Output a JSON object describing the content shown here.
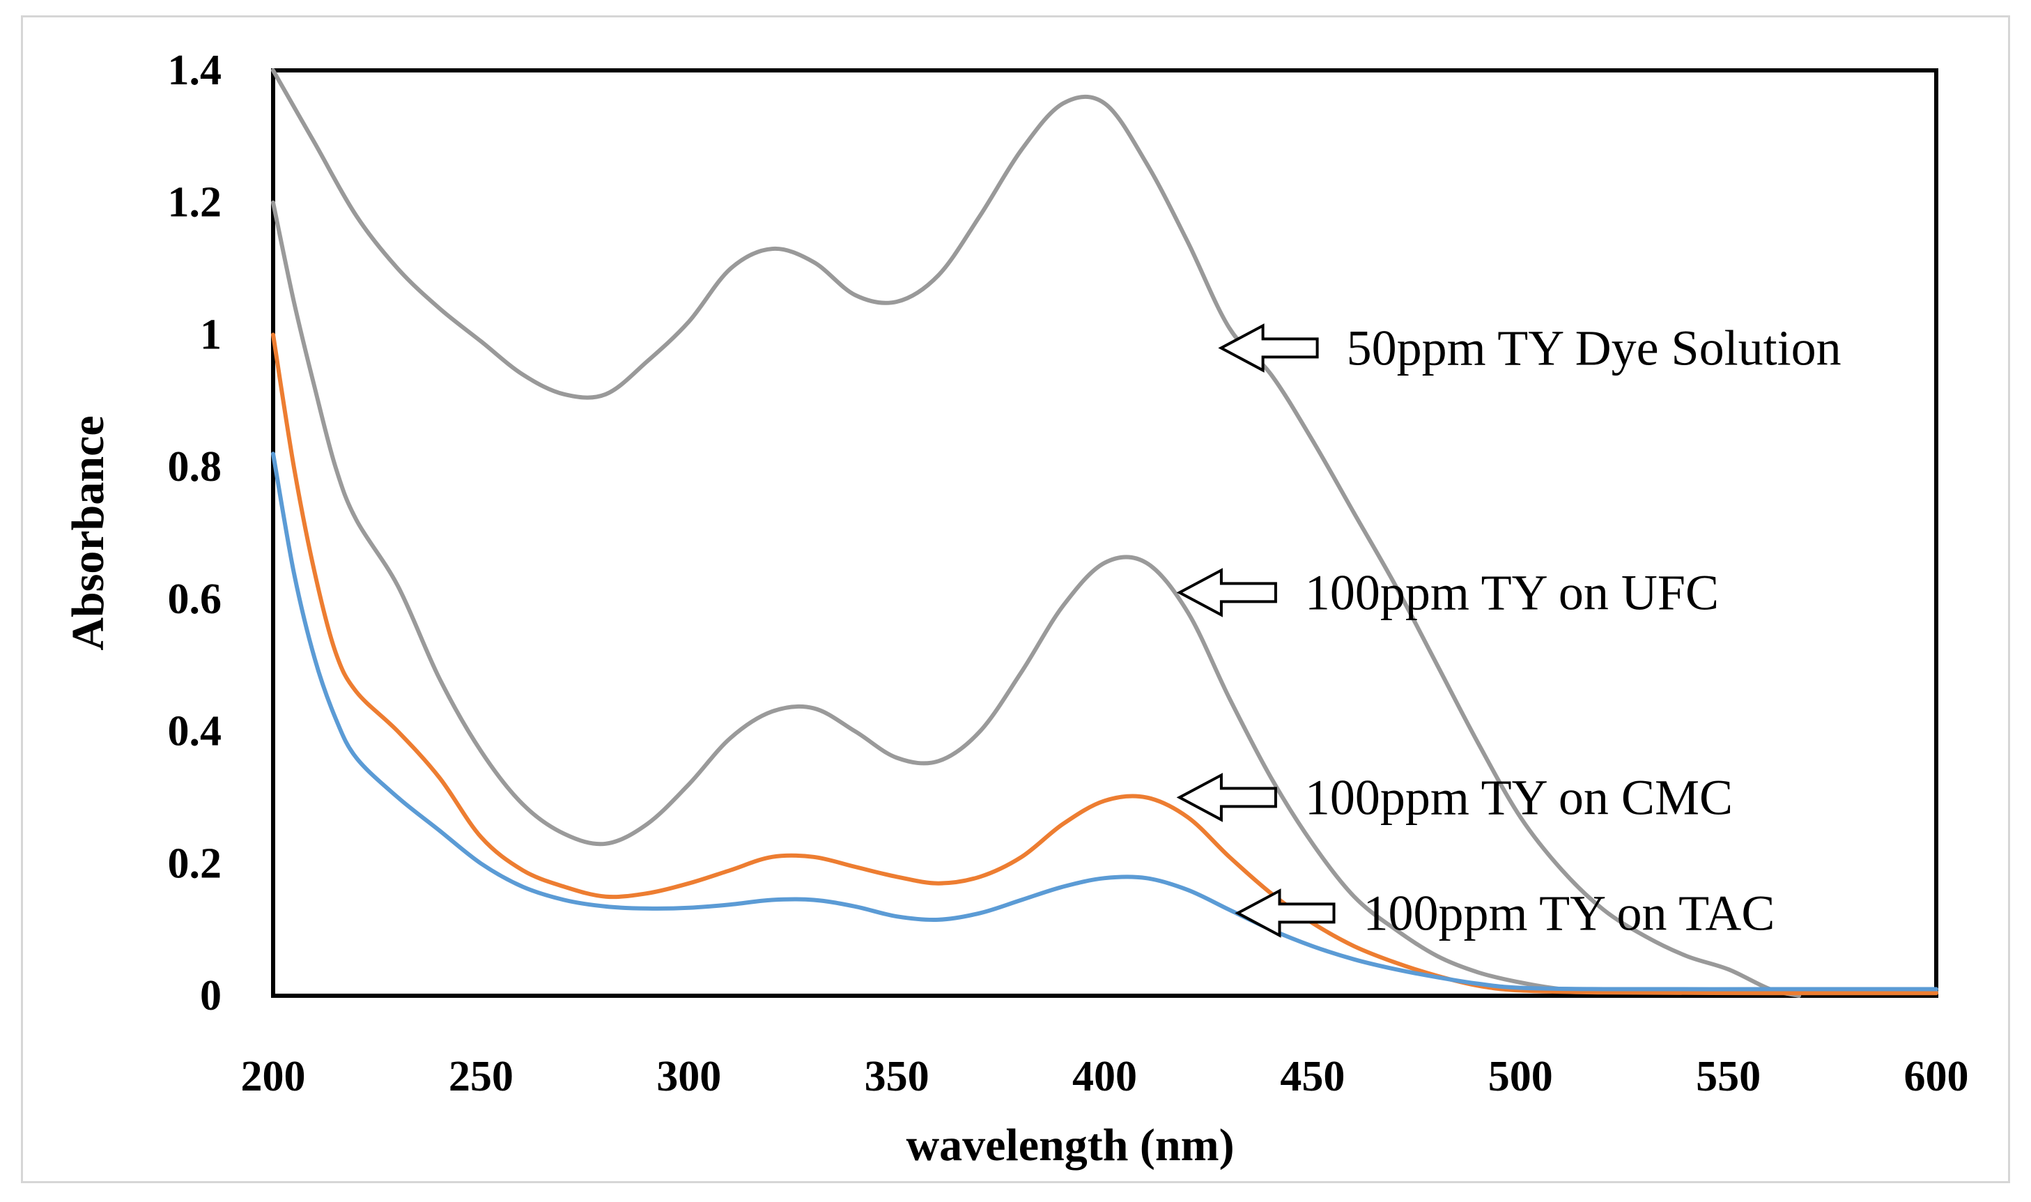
{
  "chart_data": {
    "type": "line",
    "title": "",
    "xlabel": "wavelength (nm)",
    "ylabel": "Absorbance",
    "xlim": [
      200,
      600
    ],
    "ylim": [
      0,
      1.4
    ],
    "xticks": [
      200,
      250,
      300,
      350,
      400,
      450,
      500,
      550,
      600
    ],
    "yticks": [
      0,
      0.2,
      0.4,
      0.6,
      0.8,
      1,
      1.2,
      1.4
    ],
    "ytick_labels": [
      "0",
      "0.2",
      "0.4",
      "0.6",
      "0.8",
      "1",
      "1.2",
      "1.4"
    ],
    "grid": false,
    "series": [
      {
        "name": "50ppm TY Dye Solution",
        "color": "#999999",
        "points": [
          [
            200,
            1.4
          ],
          [
            210,
            1.29
          ],
          [
            220,
            1.18
          ],
          [
            230,
            1.1
          ],
          [
            240,
            1.04
          ],
          [
            250,
            0.99
          ],
          [
            260,
            0.94
          ],
          [
            270,
            0.91
          ],
          [
            280,
            0.91
          ],
          [
            290,
            0.96
          ],
          [
            300,
            1.02
          ],
          [
            310,
            1.1
          ],
          [
            320,
            1.13
          ],
          [
            330,
            1.11
          ],
          [
            340,
            1.06
          ],
          [
            350,
            1.05
          ],
          [
            360,
            1.09
          ],
          [
            370,
            1.18
          ],
          [
            380,
            1.28
          ],
          [
            390,
            1.35
          ],
          [
            400,
            1.35
          ],
          [
            410,
            1.26
          ],
          [
            420,
            1.14
          ],
          [
            430,
            1.01
          ],
          [
            440,
            0.94
          ],
          [
            450,
            0.84
          ],
          [
            460,
            0.73
          ],
          [
            470,
            0.62
          ],
          [
            480,
            0.5
          ],
          [
            490,
            0.38
          ],
          [
            500,
            0.27
          ],
          [
            510,
            0.19
          ],
          [
            520,
            0.13
          ],
          [
            530,
            0.09
          ],
          [
            540,
            0.06
          ],
          [
            550,
            0.04
          ],
          [
            560,
            0.01
          ],
          [
            567,
            0.0
          ]
        ]
      },
      {
        "name": "100ppm TY on UFC",
        "color": "#9a9a9a",
        "points": [
          [
            200,
            1.2
          ],
          [
            205,
            1.05
          ],
          [
            210,
            0.92
          ],
          [
            215,
            0.8
          ],
          [
            220,
            0.72
          ],
          [
            230,
            0.62
          ],
          [
            240,
            0.48
          ],
          [
            250,
            0.37
          ],
          [
            260,
            0.29
          ],
          [
            270,
            0.245
          ],
          [
            280,
            0.23
          ],
          [
            290,
            0.26
          ],
          [
            300,
            0.32
          ],
          [
            310,
            0.39
          ],
          [
            320,
            0.43
          ],
          [
            330,
            0.435
          ],
          [
            340,
            0.4
          ],
          [
            350,
            0.36
          ],
          [
            360,
            0.355
          ],
          [
            370,
            0.4
          ],
          [
            380,
            0.49
          ],
          [
            390,
            0.59
          ],
          [
            400,
            0.655
          ],
          [
            410,
            0.655
          ],
          [
            420,
            0.58
          ],
          [
            430,
            0.45
          ],
          [
            440,
            0.33
          ],
          [
            450,
            0.23
          ],
          [
            460,
            0.15
          ],
          [
            470,
            0.1
          ],
          [
            480,
            0.06
          ],
          [
            490,
            0.035
          ],
          [
            500,
            0.02
          ],
          [
            510,
            0.01
          ],
          [
            520,
            0.008
          ],
          [
            550,
            0.006
          ],
          [
            600,
            0.006
          ]
        ]
      },
      {
        "name": "100ppm TY on CMC",
        "color": "#ed7d31",
        "points": [
          [
            200,
            1.0
          ],
          [
            205,
            0.8
          ],
          [
            210,
            0.64
          ],
          [
            215,
            0.52
          ],
          [
            220,
            0.46
          ],
          [
            230,
            0.4
          ],
          [
            240,
            0.33
          ],
          [
            250,
            0.24
          ],
          [
            260,
            0.19
          ],
          [
            270,
            0.165
          ],
          [
            280,
            0.15
          ],
          [
            290,
            0.155
          ],
          [
            300,
            0.17
          ],
          [
            310,
            0.19
          ],
          [
            320,
            0.21
          ],
          [
            330,
            0.21
          ],
          [
            340,
            0.195
          ],
          [
            350,
            0.18
          ],
          [
            360,
            0.17
          ],
          [
            370,
            0.18
          ],
          [
            380,
            0.21
          ],
          [
            390,
            0.26
          ],
          [
            400,
            0.295
          ],
          [
            410,
            0.3
          ],
          [
            420,
            0.27
          ],
          [
            430,
            0.21
          ],
          [
            440,
            0.155
          ],
          [
            450,
            0.11
          ],
          [
            460,
            0.075
          ],
          [
            470,
            0.05
          ],
          [
            480,
            0.03
          ],
          [
            490,
            0.015
          ],
          [
            500,
            0.008
          ],
          [
            520,
            0.005
          ],
          [
            560,
            0.004
          ],
          [
            600,
            0.004
          ]
        ]
      },
      {
        "name": "100ppm TY on TAC",
        "color": "#5b9bd5",
        "points": [
          [
            200,
            0.82
          ],
          [
            205,
            0.64
          ],
          [
            210,
            0.51
          ],
          [
            215,
            0.42
          ],
          [
            220,
            0.36
          ],
          [
            230,
            0.3
          ],
          [
            240,
            0.25
          ],
          [
            250,
            0.2
          ],
          [
            260,
            0.165
          ],
          [
            270,
            0.145
          ],
          [
            280,
            0.135
          ],
          [
            290,
            0.132
          ],
          [
            300,
            0.133
          ],
          [
            310,
            0.138
          ],
          [
            320,
            0.145
          ],
          [
            330,
            0.145
          ],
          [
            340,
            0.135
          ],
          [
            350,
            0.12
          ],
          [
            360,
            0.115
          ],
          [
            370,
            0.125
          ],
          [
            380,
            0.145
          ],
          [
            390,
            0.165
          ],
          [
            400,
            0.178
          ],
          [
            410,
            0.178
          ],
          [
            420,
            0.16
          ],
          [
            430,
            0.13
          ],
          [
            440,
            0.1
          ],
          [
            450,
            0.075
          ],
          [
            460,
            0.055
          ],
          [
            470,
            0.04
          ],
          [
            480,
            0.028
          ],
          [
            490,
            0.018
          ],
          [
            500,
            0.012
          ],
          [
            520,
            0.01
          ],
          [
            560,
            0.01
          ],
          [
            600,
            0.01
          ]
        ]
      }
    ],
    "annotations": [
      {
        "text": "50ppm TY Dye Solution",
        "arrow_tip": [
          428,
          0.98
        ]
      },
      {
        "text": "100ppm TY on UFC",
        "arrow_tip": [
          418,
          0.61
        ]
      },
      {
        "text": "100ppm TY on CMC",
        "arrow_tip": [
          418,
          0.3
        ]
      },
      {
        "text": "100ppm TY on TAC",
        "arrow_tip": [
          432,
          0.125
        ]
      }
    ]
  }
}
